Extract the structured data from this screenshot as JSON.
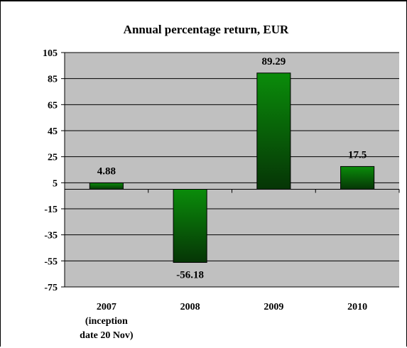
{
  "chart_data": {
    "type": "bar",
    "title": "Annual percentage return, EUR",
    "categories": [
      [
        "2007",
        "(inception",
        "date 20 Nov)"
      ],
      [
        "2008"
      ],
      [
        "2009"
      ],
      [
        "2010"
      ]
    ],
    "values": [
      4.88,
      -56.18,
      89.29,
      17.5
    ],
    "value_labels": [
      "4.88",
      "-56.18",
      "89.29",
      "17.5"
    ],
    "ylim": [
      -75,
      105
    ],
    "yticks": [
      105,
      85,
      65,
      45,
      25,
      5,
      -15,
      -35,
      -55,
      -75
    ],
    "xlabel": "",
    "ylabel": "",
    "grid": true,
    "legend": "none",
    "colors": {
      "plot_bg": "#c0c0c0",
      "bar_light": "#0a8c0a",
      "bar_dark": "#063506",
      "grid": "#000000"
    }
  }
}
